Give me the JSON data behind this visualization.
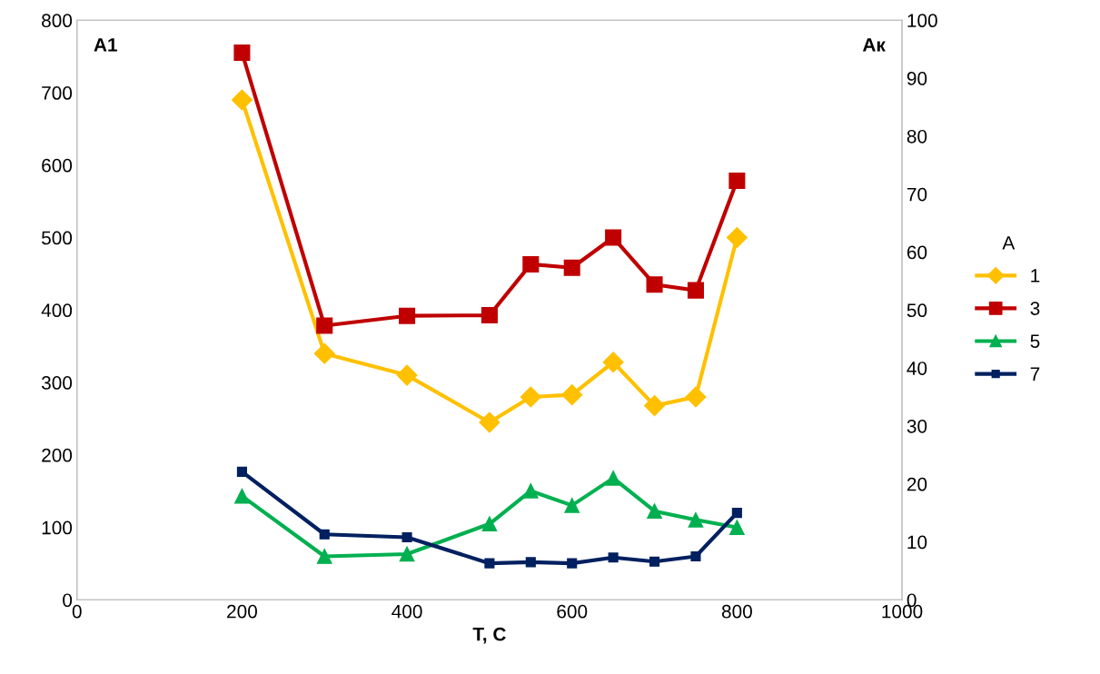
{
  "chart_data": {
    "type": "line",
    "xlabel": "T, C",
    "legend_title": "A",
    "legend": "right",
    "grid": false,
    "annotations": [
      "A1",
      "Aк"
    ],
    "xlim": [
      0,
      1000
    ],
    "xticks": [
      0,
      200,
      400,
      600,
      800,
      1000
    ],
    "ylim": [
      0,
      800
    ],
    "yticks": [
      0,
      100,
      200,
      300,
      400,
      500,
      600,
      700,
      800
    ],
    "y2lim": [
      0,
      100
    ],
    "y2ticks": [
      0,
      10,
      20,
      30,
      40,
      50,
      60,
      70,
      80,
      90,
      100
    ],
    "x": [
      200,
      300,
      400,
      500,
      550,
      600,
      650,
      700,
      750,
      800
    ],
    "series": [
      {
        "name": "1",
        "color": "#ffc000",
        "marker": "diamond",
        "values": [
          690,
          340,
          310,
          245,
          280,
          283,
          328,
          268,
          280,
          500
        ]
      },
      {
        "name": "3",
        "color": "#c00000",
        "marker": "square",
        "axis": "y2",
        "values": [
          94.4,
          47.3,
          49,
          49.1,
          57.9,
          57.3,
          62.5,
          54.4,
          53.4,
          72.3
        ]
      },
      {
        "name": "5",
        "color": "#00b050",
        "marker": "triangle",
        "axis": "y2",
        "values": [
          17.9,
          7.5,
          7.9,
          13.1,
          18.8,
          16.3,
          21,
          15.3,
          13.8,
          12.5
        ]
      },
      {
        "name": "7",
        "color": "#002060",
        "marker": "square",
        "axis": "y2",
        "values": [
          22.1,
          11.3,
          10.8,
          6.3,
          6.5,
          6.3,
          7.3,
          6.6,
          7.5,
          15
        ]
      }
    ]
  }
}
